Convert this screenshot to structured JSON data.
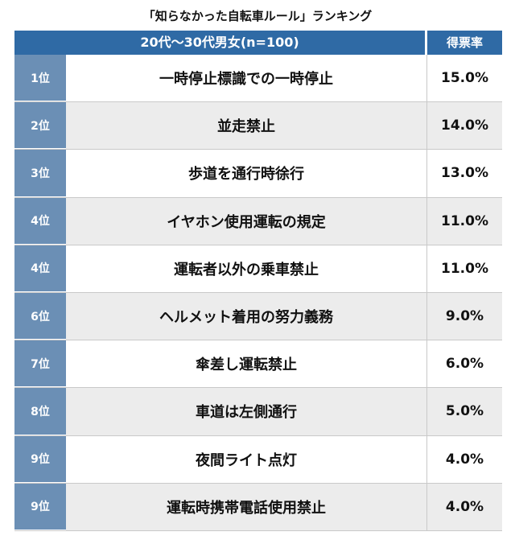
{
  "chart_data": {
    "type": "table",
    "title": "「知らなかった自転車ルール」ランキング",
    "header": {
      "group": "20代〜30代男女(n=100)",
      "value": "得票率"
    },
    "rows": [
      {
        "rank": "1位",
        "item": "一時停止標識での一時停止",
        "value": "15.0%"
      },
      {
        "rank": "2位",
        "item": "並走禁止",
        "value": "14.0%"
      },
      {
        "rank": "3位",
        "item": "歩道を通行時徐行",
        "value": "13.0%"
      },
      {
        "rank": "4位",
        "item": "イヤホン使用運転の規定",
        "value": "11.0%"
      },
      {
        "rank": "4位",
        "item": "運転者以外の乗車禁止",
        "value": "11.0%"
      },
      {
        "rank": "6位",
        "item": "ヘルメット着用の努力義務",
        "value": "9.0%"
      },
      {
        "rank": "7位",
        "item": "傘差し運転禁止",
        "value": "6.0%"
      },
      {
        "rank": "8位",
        "item": "車道は左側通行",
        "value": "5.0%"
      },
      {
        "rank": "9位",
        "item": "夜間ライト点灯",
        "value": "4.0%"
      },
      {
        "rank": "9位",
        "item": "運転時携帯電話使用禁止",
        "value": "4.0%"
      }
    ],
    "colors": {
      "header": "#2f6aa5",
      "rank_cell": "#6b8fb5",
      "row_alt": "#ececec"
    }
  }
}
